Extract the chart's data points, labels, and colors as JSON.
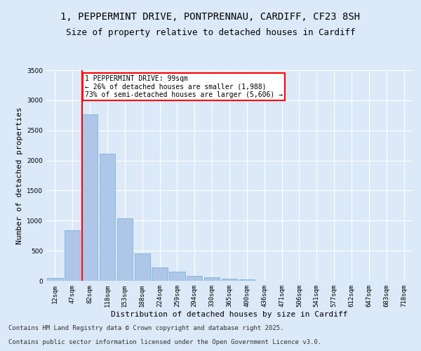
{
  "title_line1": "1, PEPPERMINT DRIVE, PONTPRENNAU, CARDIFF, CF23 8SH",
  "title_line2": "Size of property relative to detached houses in Cardiff",
  "xlabel": "Distribution of detached houses by size in Cardiff",
  "ylabel": "Number of detached properties",
  "categories": [
    "12sqm",
    "47sqm",
    "82sqm",
    "118sqm",
    "153sqm",
    "188sqm",
    "224sqm",
    "259sqm",
    "294sqm",
    "330sqm",
    "365sqm",
    "400sqm",
    "436sqm",
    "471sqm",
    "506sqm",
    "541sqm",
    "577sqm",
    "612sqm",
    "647sqm",
    "683sqm",
    "718sqm"
  ],
  "values": [
    50,
    840,
    2760,
    2110,
    1035,
    455,
    225,
    155,
    85,
    55,
    30,
    20,
    5,
    2,
    1,
    0,
    0,
    0,
    0,
    0,
    0
  ],
  "bar_color": "#aec6e8",
  "bar_edge_color": "#6aaed6",
  "vline_x": 2,
  "vline_color": "red",
  "annotation_title": "1 PEPPERMINT DRIVE: 99sqm",
  "annotation_line1": "← 26% of detached houses are smaller (1,988)",
  "annotation_line2": "73% of semi-detached houses are larger (5,606) →",
  "annotation_box_color": "red",
  "ylim": [
    0,
    3500
  ],
  "yticks": [
    0,
    500,
    1000,
    1500,
    2000,
    2500,
    3000,
    3500
  ],
  "bg_color": "#dce9f8",
  "plot_bg_color": "#dce9f8",
  "footer_line1": "Contains HM Land Registry data © Crown copyright and database right 2025.",
  "footer_line2": "Contains public sector information licensed under the Open Government Licence v3.0.",
  "title_fontsize": 10,
  "subtitle_fontsize": 9,
  "axis_label_fontsize": 8,
  "tick_fontsize": 6.5,
  "footer_fontsize": 6.5
}
